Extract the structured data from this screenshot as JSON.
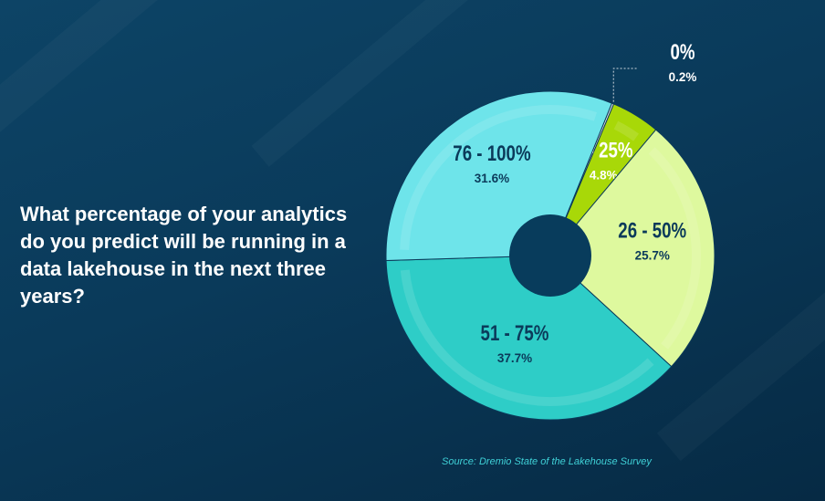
{
  "question": "What percentage of your analytics do you predict will be running in a data lakehouse in the next three years?",
  "source": "Source: Dremio State of the Lakehouse Survey",
  "chart_data": {
    "type": "pie",
    "variant": "donut",
    "title": "What percentage of your analytics do you predict will be running in a data lakehouse in the next three years?",
    "categories": [
      "0%",
      "1 - 25%",
      "26 - 50%",
      "51 - 75%",
      "76 - 100%"
    ],
    "values": [
      0.2,
      4.8,
      25.7,
      37.7,
      31.6
    ],
    "value_labels": [
      "0.2%",
      "4.8%",
      "25.7%",
      "37.7%",
      "31.6%"
    ],
    "colors": [
      "#e6e9ec",
      "#a8d808",
      "#def99e",
      "#2ecdc7",
      "#6ee4ea"
    ],
    "label_colors": [
      "#ffffff",
      "#ffffff",
      "#0b3a5a",
      "#0b3a5a",
      "#0b3a5a"
    ],
    "hole_color": "#083c5c"
  }
}
